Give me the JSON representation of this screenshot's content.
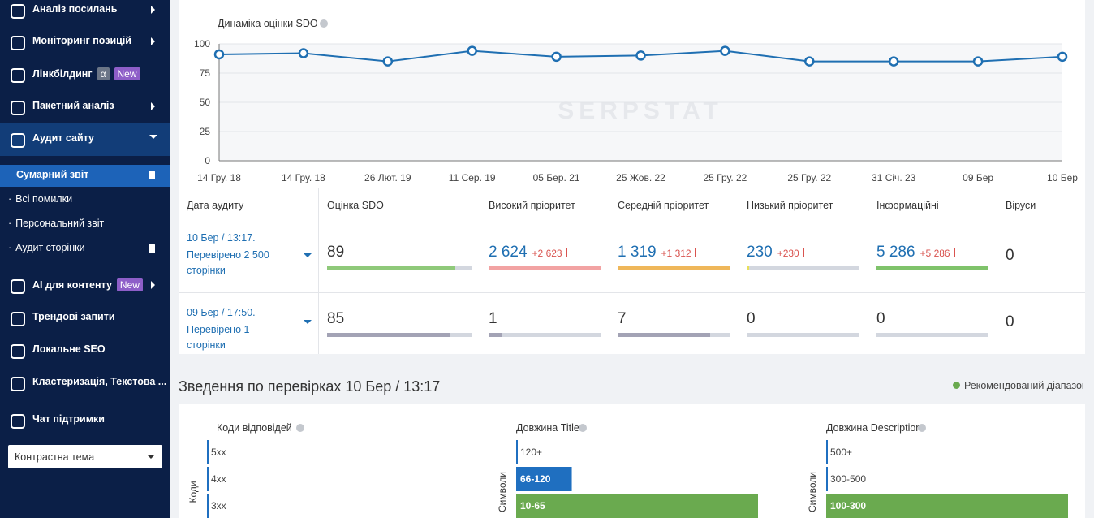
{
  "sidebar": {
    "items": [
      {
        "label": "Аналіз посилань"
      },
      {
        "label": "Моніторинг позицій"
      },
      {
        "label": "Лінкбілдинг",
        "badges": [
          "α",
          "New"
        ]
      },
      {
        "label": "Пакетний аналіз"
      },
      {
        "label": "Аудит сайту"
      }
    ],
    "subitems": [
      "Сумарний звіт",
      "Всі помилки",
      "Персональний звіт",
      "Аудит сторінки"
    ],
    "items2": [
      {
        "label": "AI для контенту",
        "badges": [
          "New"
        ]
      },
      {
        "label": "Трендові запити"
      },
      {
        "label": "Локальне SEO"
      },
      {
        "label": "Кластеризація, Текстова ..."
      },
      {
        "label": "Чат підтримки"
      }
    ],
    "theme": "Контрастна тема"
  },
  "chart_data": [
    {
      "type": "line",
      "title": "Динаміка оцінки SDO",
      "watermark": "SERPSTAT",
      "categories": [
        "14 Гру. 18",
        "14 Гру. 18",
        "26 Лют. 19",
        "11 Сер. 19",
        "05 Бер. 21",
        "25 Жов. 22",
        "25 Гру. 22",
        "25 Гру. 22",
        "31 Січ. 23",
        "09 Бер",
        "10 Бер"
      ],
      "values": [
        91,
        92,
        85,
        94,
        89,
        90,
        94,
        85,
        85,
        85,
        89
      ],
      "ylim": [
        0,
        100
      ],
      "yticks": [
        0,
        25,
        50,
        75,
        100
      ],
      "color": "#1f6fb2",
      "grid": true
    },
    {
      "type": "hbar",
      "title": "Коди відповідей",
      "axis_label": "Коди",
      "categories": [
        "5xx",
        "4xx",
        "3xx"
      ],
      "values": [
        0,
        0,
        0
      ],
      "xlim": [
        0,
        100
      ],
      "colors": [
        "#1f6fc0",
        "#1f6fc0",
        "#1f6fc0"
      ]
    },
    {
      "type": "hbar",
      "title": "Довжина Title",
      "axis_label": "Символи",
      "categories": [
        "120+",
        "66-120",
        "10-65"
      ],
      "values": [
        0,
        23,
        100
      ],
      "xlim": [
        0,
        100
      ],
      "colors": [
        "#1f6fc0",
        "#1f6fc0",
        "#6aaa4f"
      ]
    },
    {
      "type": "hbar",
      "title": "Довжина Description",
      "axis_label": "Символи",
      "categories": [
        "500+",
        "300-500",
        "100-300"
      ],
      "values": [
        0,
        0,
        100
      ],
      "xlim": [
        0,
        100
      ],
      "colors": [
        "#1f6fc0",
        "#1f6fc0",
        "#6aaa4f"
      ]
    }
  ],
  "audit_table": {
    "headers": [
      "Дата аудиту",
      "Оцінка SDO",
      "Високий пріоритет",
      "Середній пріоритет",
      "Низький пріоритет",
      "Інформаційні",
      "Віруси"
    ],
    "rows": [
      {
        "date": "10 Бер / 13:17.",
        "pages": "Перевірено 2 500 сторінки",
        "cells": [
          {
            "value": "89"
          },
          {
            "value": "2 624",
            "delta": "+2 623"
          },
          {
            "value": "1 319",
            "delta": "+1 312"
          },
          {
            "value": "230",
            "delta": "+230"
          },
          {
            "value": "5 286",
            "delta": "+5 286"
          },
          {
            "value": "0"
          }
        ]
      },
      {
        "date": "09 Бер / 17:50.",
        "pages": "Перевірено 1 сторінки",
        "cells": [
          {
            "value": "85"
          },
          {
            "value": "1"
          },
          {
            "value": "7"
          },
          {
            "value": "0"
          },
          {
            "value": "0"
          },
          {
            "value": "0"
          }
        ]
      }
    ]
  },
  "summary": {
    "title": "Зведення по перевірках 10 Бер / 13:17",
    "legend": "Рекомендований діапазон"
  }
}
